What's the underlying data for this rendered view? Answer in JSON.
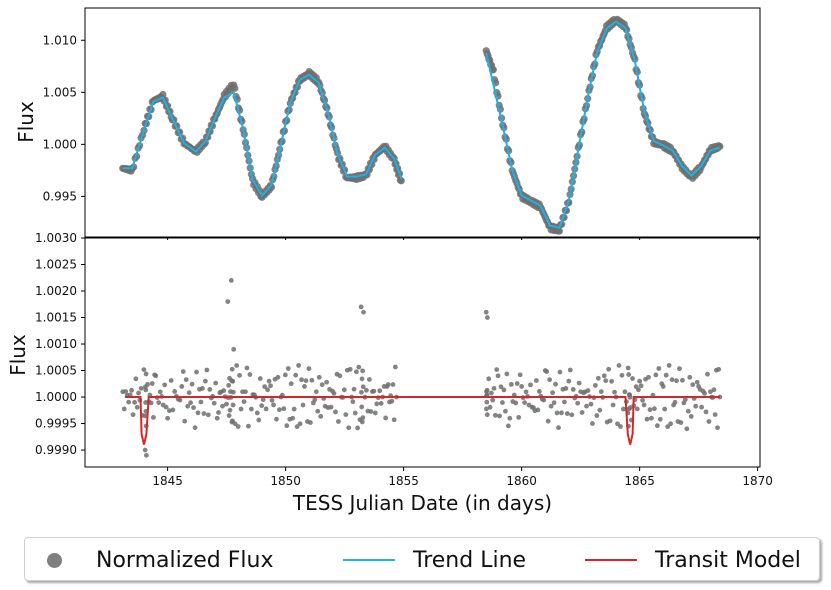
{
  "chart_data": [
    {
      "type": "scatter",
      "panel": "top",
      "ylabel": "Flux",
      "ylim": [
        0.9911,
        1.0131
      ],
      "xlim": [
        1841.5,
        1870.1
      ],
      "yticks": [
        "0.995",
        "1.000",
        "1.005",
        "1.010"
      ],
      "series": [
        {
          "name": "Normalized Flux",
          "segments": [
            {
              "x": [
                1843.1,
                1843.5,
                1844.0,
                1844.4,
                1844.8,
                1845.2,
                1845.7,
                1846.2,
                1846.6,
                1847.0,
                1847.4,
                1847.8,
                1848.2,
                1848.6,
                1849.0,
                1849.4,
                1849.8,
                1850.2,
                1850.6,
                1851.0,
                1851.4,
                1851.8,
                1852.2,
                1852.6,
                1853.0,
                1853.4,
                1853.8,
                1854.2,
                1854.6,
                1854.9
              ],
              "y": [
                0.9977,
                0.9975,
                1.0015,
                1.0042,
                1.0046,
                1.0025,
                1.0001,
                0.9993,
                1.0003,
                1.0025,
                1.0046,
                1.0058,
                1.0015,
                0.9965,
                0.995,
                0.996,
                1.0,
                1.004,
                1.0062,
                1.0068,
                1.006,
                1.003,
                0.999,
                0.9968,
                0.9968,
                0.997,
                0.999,
                0.9998,
                0.9985,
                0.9965
              ]
            },
            {
              "x": [
                1858.5,
                1858.8,
                1859.2,
                1859.6,
                1860.0,
                1860.4,
                1860.8,
                1861.2,
                1861.6,
                1862.0,
                1862.4,
                1862.8,
                1863.2,
                1863.6,
                1864.0,
                1864.4,
                1864.8,
                1865.2,
                1865.6,
                1866.0,
                1866.4,
                1866.8,
                1867.2,
                1867.6,
                1868.0,
                1868.4
              ],
              "y": [
                1.009,
                1.007,
                1.002,
                0.9975,
                0.995,
                0.9945,
                0.994,
                0.992,
                0.9918,
                0.9945,
                0.9995,
                1.0045,
                1.009,
                1.0112,
                1.012,
                1.0113,
                1.008,
                1.003,
                1.0002,
                0.9999,
                0.9994,
                0.9978,
                0.9968,
                0.9978,
                0.9995,
                0.9998
              ]
            }
          ]
        },
        {
          "name": "Trend Line",
          "segments": [
            {
              "x": [
                1843.1,
                1843.5,
                1844.0,
                1844.4,
                1844.8,
                1845.2,
                1845.7,
                1846.2,
                1846.6,
                1847.0,
                1847.4,
                1847.8,
                1848.2,
                1848.6,
                1849.0,
                1849.4,
                1849.8,
                1850.2,
                1850.6,
                1851.0,
                1851.4,
                1851.8,
                1852.2,
                1852.6,
                1853.0,
                1853.4,
                1853.8,
                1854.2,
                1854.6,
                1854.9
              ],
              "y": [
                0.9977,
                0.9977,
                1.0014,
                1.0041,
                1.0045,
                1.0025,
                1.0001,
                0.9993,
                1.0003,
                1.0025,
                1.0045,
                1.005,
                1.0015,
                0.9966,
                0.9951,
                0.9961,
                1.0,
                1.004,
                1.0062,
                1.0067,
                1.0059,
                1.003,
                0.9991,
                0.9969,
                0.9969,
                0.9971,
                0.999,
                0.9997,
                0.9986,
                0.9967
              ]
            },
            {
              "x": [
                1858.5,
                1858.8,
                1859.2,
                1859.6,
                1860.0,
                1860.4,
                1860.8,
                1861.2,
                1861.6,
                1862.0,
                1862.4,
                1862.8,
                1863.2,
                1863.6,
                1864.0,
                1864.4,
                1864.8,
                1865.2,
                1865.6,
                1866.0,
                1866.4,
                1866.8,
                1867.2,
                1867.6,
                1868.0,
                1868.4
              ],
              "y": [
                1.0088,
                1.0058,
                1.0018,
                0.9975,
                0.9951,
                0.9946,
                0.9941,
                0.9922,
                0.992,
                0.9946,
                0.9995,
                1.0045,
                1.0089,
                1.0111,
                1.0118,
                1.0112,
                1.008,
                1.0031,
                1.0003,
                0.9999,
                0.9994,
                0.9979,
                0.997,
                0.9979,
                0.9994,
                0.9997
              ]
            }
          ]
        }
      ]
    },
    {
      "type": "scatter",
      "panel": "bottom",
      "xlabel": "TESS Julian Date (in days)",
      "ylabel": "Flux",
      "ylim": [
        0.99868,
        1.003
      ],
      "xlim": [
        1841.5,
        1870.1
      ],
      "xticks": [
        "1845",
        "1850",
        "1855",
        "1860",
        "1865",
        "1870"
      ],
      "yticks": [
        "0.9990",
        "0.9995",
        "1.0000",
        "1.0005",
        "1.0010",
        "1.0015",
        "1.0020",
        "1.0025",
        "1.0030"
      ],
      "series": [
        {
          "name": "Normalized Flux",
          "segments": [
            {
              "x": [
                1843.1,
                1843.6,
                1844.05,
                1844.1,
                1844.5,
                1845.0,
                1845.6,
                1846.1,
                1846.6,
                1847.1,
                1847.55,
                1847.7,
                1847.8,
                1848.3,
                1848.8,
                1849.3,
                1849.8,
                1850.3,
                1850.8,
                1851.3,
                1851.8,
                1852.3,
                1852.8,
                1853.2,
                1853.3,
                1853.8,
                1854.3,
                1854.7
              ],
              "y": [
                1.0001,
                0.9999,
                0.999,
                0.9989,
                1.0004,
                0.9996,
                1.0002,
                0.9998,
                1.0003,
                0.9996,
                1.0018,
                1.0022,
                1.0009,
                1.0001,
                0.9997,
                1.0003,
                1.0,
                0.9996,
                1.0002,
                1.0001,
                0.9998,
                1.0004,
                1.0,
                1.0017,
                1.0016,
                0.9997,
                1.0002,
                1.0
              ]
            },
            {
              "x": [
                1858.5,
                1858.55,
                1859.0,
                1859.5,
                1860.0,
                1860.5,
                1861.0,
                1861.5,
                1862.0,
                1862.5,
                1863.0,
                1863.5,
                1864.0,
                1864.5,
                1864.6,
                1865.0,
                1865.5,
                1866.0,
                1866.5,
                1867.0,
                1867.5,
                1868.0,
                1868.4
              ],
              "y": [
                1.0016,
                1.0015,
                1.0004,
                0.9996,
                1.0002,
                0.9998,
                1.0005,
                0.9997,
                1.0003,
                1.0001,
                0.9995,
                1.0004,
                1.0,
                0.9997,
                0.9998,
                1.0003,
                0.9996,
                1.0002,
                0.9999,
                0.9994,
                1.0002,
                1.0001,
                1.0
              ]
            }
          ]
        },
        {
          "name": "Transit Model",
          "segments": [
            {
              "x": [
                1843.2,
                1843.85,
                1843.9,
                1844.0,
                1844.1,
                1844.2,
                1864.4,
                1864.5,
                1864.6,
                1864.7,
                1864.75,
                1868.4
              ],
              "y": [
                1.0,
                1.0,
                0.9993,
                0.9991,
                0.9993,
                1.0,
                1.0,
                0.9993,
                0.9991,
                0.9993,
                1.0,
                1.0
              ]
            }
          ]
        }
      ]
    }
  ],
  "legend": {
    "items": [
      {
        "label": "Normalized Flux",
        "marker": "dot",
        "color": "#7f7f7f"
      },
      {
        "label": "Trend Line",
        "marker": "line",
        "color": "#1fb0e6"
      },
      {
        "label": "Transit Model",
        "marker": "line",
        "color": "#d62728"
      }
    ]
  },
  "colors": {
    "points": "#6e6e6e",
    "trend": "#1fb0e6",
    "transit": "#d62728"
  }
}
